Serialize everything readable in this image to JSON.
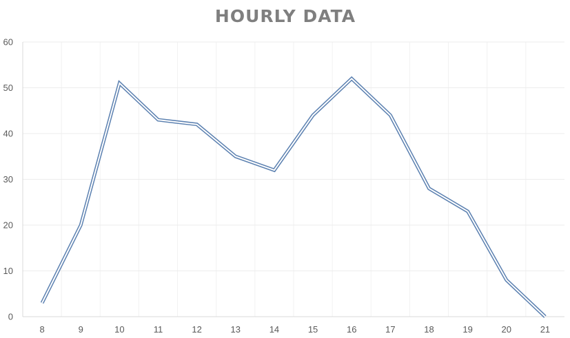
{
  "chart_data": {
    "type": "line",
    "title": "HOURLY DATA",
    "xlabel": "",
    "ylabel": "",
    "x": [
      8,
      9,
      10,
      11,
      12,
      13,
      14,
      15,
      16,
      17,
      18,
      19,
      20,
      21
    ],
    "series": [
      {
        "values": [
          3,
          20,
          51,
          43,
          42,
          35,
          32,
          44,
          52,
          44,
          28,
          23,
          8,
          0
        ]
      }
    ],
    "ylim": [
      0,
      60
    ],
    "yticks": [
      0,
      10,
      20,
      30,
      40,
      50,
      60
    ],
    "grid": true,
    "legend": "none",
    "colors": {
      "series_line": "#5b80b0",
      "title": "#7f7f7f",
      "tick_label": "#595959",
      "gridline": "#ececec"
    }
  }
}
